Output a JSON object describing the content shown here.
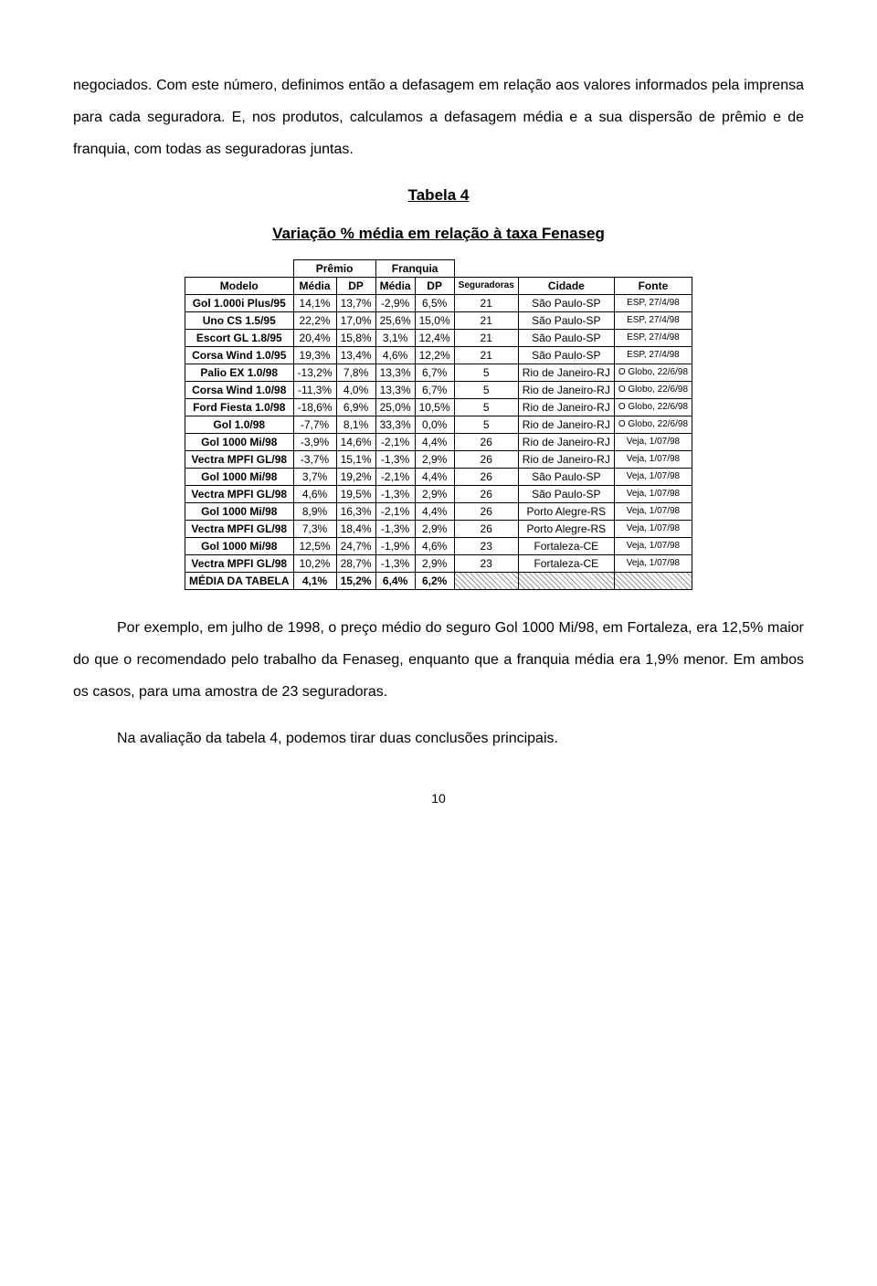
{
  "para1": "negociados. Com este número, definimos então a defasagem em relação aos valores informados pela imprensa para cada seguradora. E, nos produtos, calculamos a defasagem média e a sua dispersão de prêmio e de franquia, com todas as seguradoras juntas.",
  "table_title": "Tabela 4",
  "table_subtitle": "Variação % média em relação à taxa Fenaseg",
  "group_premio": "Prêmio",
  "group_franquia": "Franquia",
  "headers": {
    "modelo": "Modelo",
    "media": "Média",
    "dp": "DP",
    "seguradoras": "Seguradoras",
    "cidade": "Cidade",
    "fonte": "Fonte"
  },
  "rows": [
    {
      "modelo": "Gol 1.000i Plus/95",
      "p_med": "14,1%",
      "p_dp": "13,7%",
      "f_med": "-2,9%",
      "f_dp": "6,5%",
      "seg": "21",
      "cidade": "São Paulo-SP",
      "fonte": "ESP, 27/4/98"
    },
    {
      "modelo": "Uno CS 1.5/95",
      "p_med": "22,2%",
      "p_dp": "17,0%",
      "f_med": "25,6%",
      "f_dp": "15,0%",
      "seg": "21",
      "cidade": "São Paulo-SP",
      "fonte": "ESP, 27/4/98"
    },
    {
      "modelo": "Escort GL 1.8/95",
      "p_med": "20,4%",
      "p_dp": "15,8%",
      "f_med": "3,1%",
      "f_dp": "12,4%",
      "seg": "21",
      "cidade": "São Paulo-SP",
      "fonte": "ESP, 27/4/98"
    },
    {
      "modelo": "Corsa Wind 1.0/95",
      "p_med": "19,3%",
      "p_dp": "13,4%",
      "f_med": "4,6%",
      "f_dp": "12,2%",
      "seg": "21",
      "cidade": "São Paulo-SP",
      "fonte": "ESP, 27/4/98"
    },
    {
      "modelo": "Palio EX 1.0/98",
      "p_med": "-13,2%",
      "p_dp": "7,8%",
      "f_med": "13,3%",
      "f_dp": "6,7%",
      "seg": "5",
      "cidade": "Rio de Janeiro-RJ",
      "fonte": "O Globo, 22/6/98"
    },
    {
      "modelo": "Corsa Wind 1.0/98",
      "p_med": "-11,3%",
      "p_dp": "4,0%",
      "f_med": "13,3%",
      "f_dp": "6,7%",
      "seg": "5",
      "cidade": "Rio de Janeiro-RJ",
      "fonte": "O Globo, 22/6/98"
    },
    {
      "modelo": "Ford Fiesta 1.0/98",
      "p_med": "-18,6%",
      "p_dp": "6,9%",
      "f_med": "25,0%",
      "f_dp": "10,5%",
      "seg": "5",
      "cidade": "Rio de Janeiro-RJ",
      "fonte": "O Globo, 22/6/98"
    },
    {
      "modelo": "Gol 1.0/98",
      "p_med": "-7,7%",
      "p_dp": "8,1%",
      "f_med": "33,3%",
      "f_dp": "0,0%",
      "seg": "5",
      "cidade": "Rio de Janeiro-RJ",
      "fonte": "O Globo, 22/6/98"
    },
    {
      "modelo": "Gol 1000 Mi/98",
      "p_med": "-3,9%",
      "p_dp": "14,6%",
      "f_med": "-2,1%",
      "f_dp": "4,4%",
      "seg": "26",
      "cidade": "Rio de Janeiro-RJ",
      "fonte": "Veja, 1/07/98"
    },
    {
      "modelo": "Vectra MPFI GL/98",
      "p_med": "-3,7%",
      "p_dp": "15,1%",
      "f_med": "-1,3%",
      "f_dp": "2,9%",
      "seg": "26",
      "cidade": "Rio de Janeiro-RJ",
      "fonte": "Veja, 1/07/98"
    },
    {
      "modelo": "Gol 1000 Mi/98",
      "p_med": "3,7%",
      "p_dp": "19,2%",
      "f_med": "-2,1%",
      "f_dp": "4,4%",
      "seg": "26",
      "cidade": "São Paulo-SP",
      "fonte": "Veja, 1/07/98"
    },
    {
      "modelo": "Vectra MPFI GL/98",
      "p_med": "4,6%",
      "p_dp": "19,5%",
      "f_med": "-1,3%",
      "f_dp": "2,9%",
      "seg": "26",
      "cidade": "São Paulo-SP",
      "fonte": "Veja, 1/07/98"
    },
    {
      "modelo": "Gol 1000 Mi/98",
      "p_med": "8,9%",
      "p_dp": "16,3%",
      "f_med": "-2,1%",
      "f_dp": "4,4%",
      "seg": "26",
      "cidade": "Porto Alegre-RS",
      "fonte": "Veja, 1/07/98"
    },
    {
      "modelo": "Vectra MPFI GL/98",
      "p_med": "7,3%",
      "p_dp": "18,4%",
      "f_med": "-1,3%",
      "f_dp": "2,9%",
      "seg": "26",
      "cidade": "Porto Alegre-RS",
      "fonte": "Veja, 1/07/98"
    },
    {
      "modelo": "Gol 1000 Mi/98",
      "p_med": "12,5%",
      "p_dp": "24,7%",
      "f_med": "-1,9%",
      "f_dp": "4,6%",
      "seg": "23",
      "cidade": "Fortaleza-CE",
      "fonte": "Veja, 1/07/98"
    },
    {
      "modelo": "Vectra MPFI GL/98",
      "p_med": "10,2%",
      "p_dp": "28,7%",
      "f_med": "-1,3%",
      "f_dp": "2,9%",
      "seg": "23",
      "cidade": "Fortaleza-CE",
      "fonte": "Veja, 1/07/98"
    }
  ],
  "footer_row": {
    "modelo": "MÉDIA DA TABELA",
    "p_med": "4,1%",
    "p_dp": "15,2%",
    "f_med": "6,4%",
    "f_dp": "6,2%"
  },
  "para2": "Por exemplo, em julho de 1998, o preço médio do seguro Gol 1000 Mi/98, em Fortaleza, era 12,5% maior do que o recomendado pelo trabalho da Fenaseg, enquanto que a franquia média era 1,9% menor. Em ambos os casos, para uma amostra de 23 seguradoras.",
  "para3": "Na avaliação da tabela 4, podemos tirar duas conclusões principais.",
  "page_number": "10"
}
